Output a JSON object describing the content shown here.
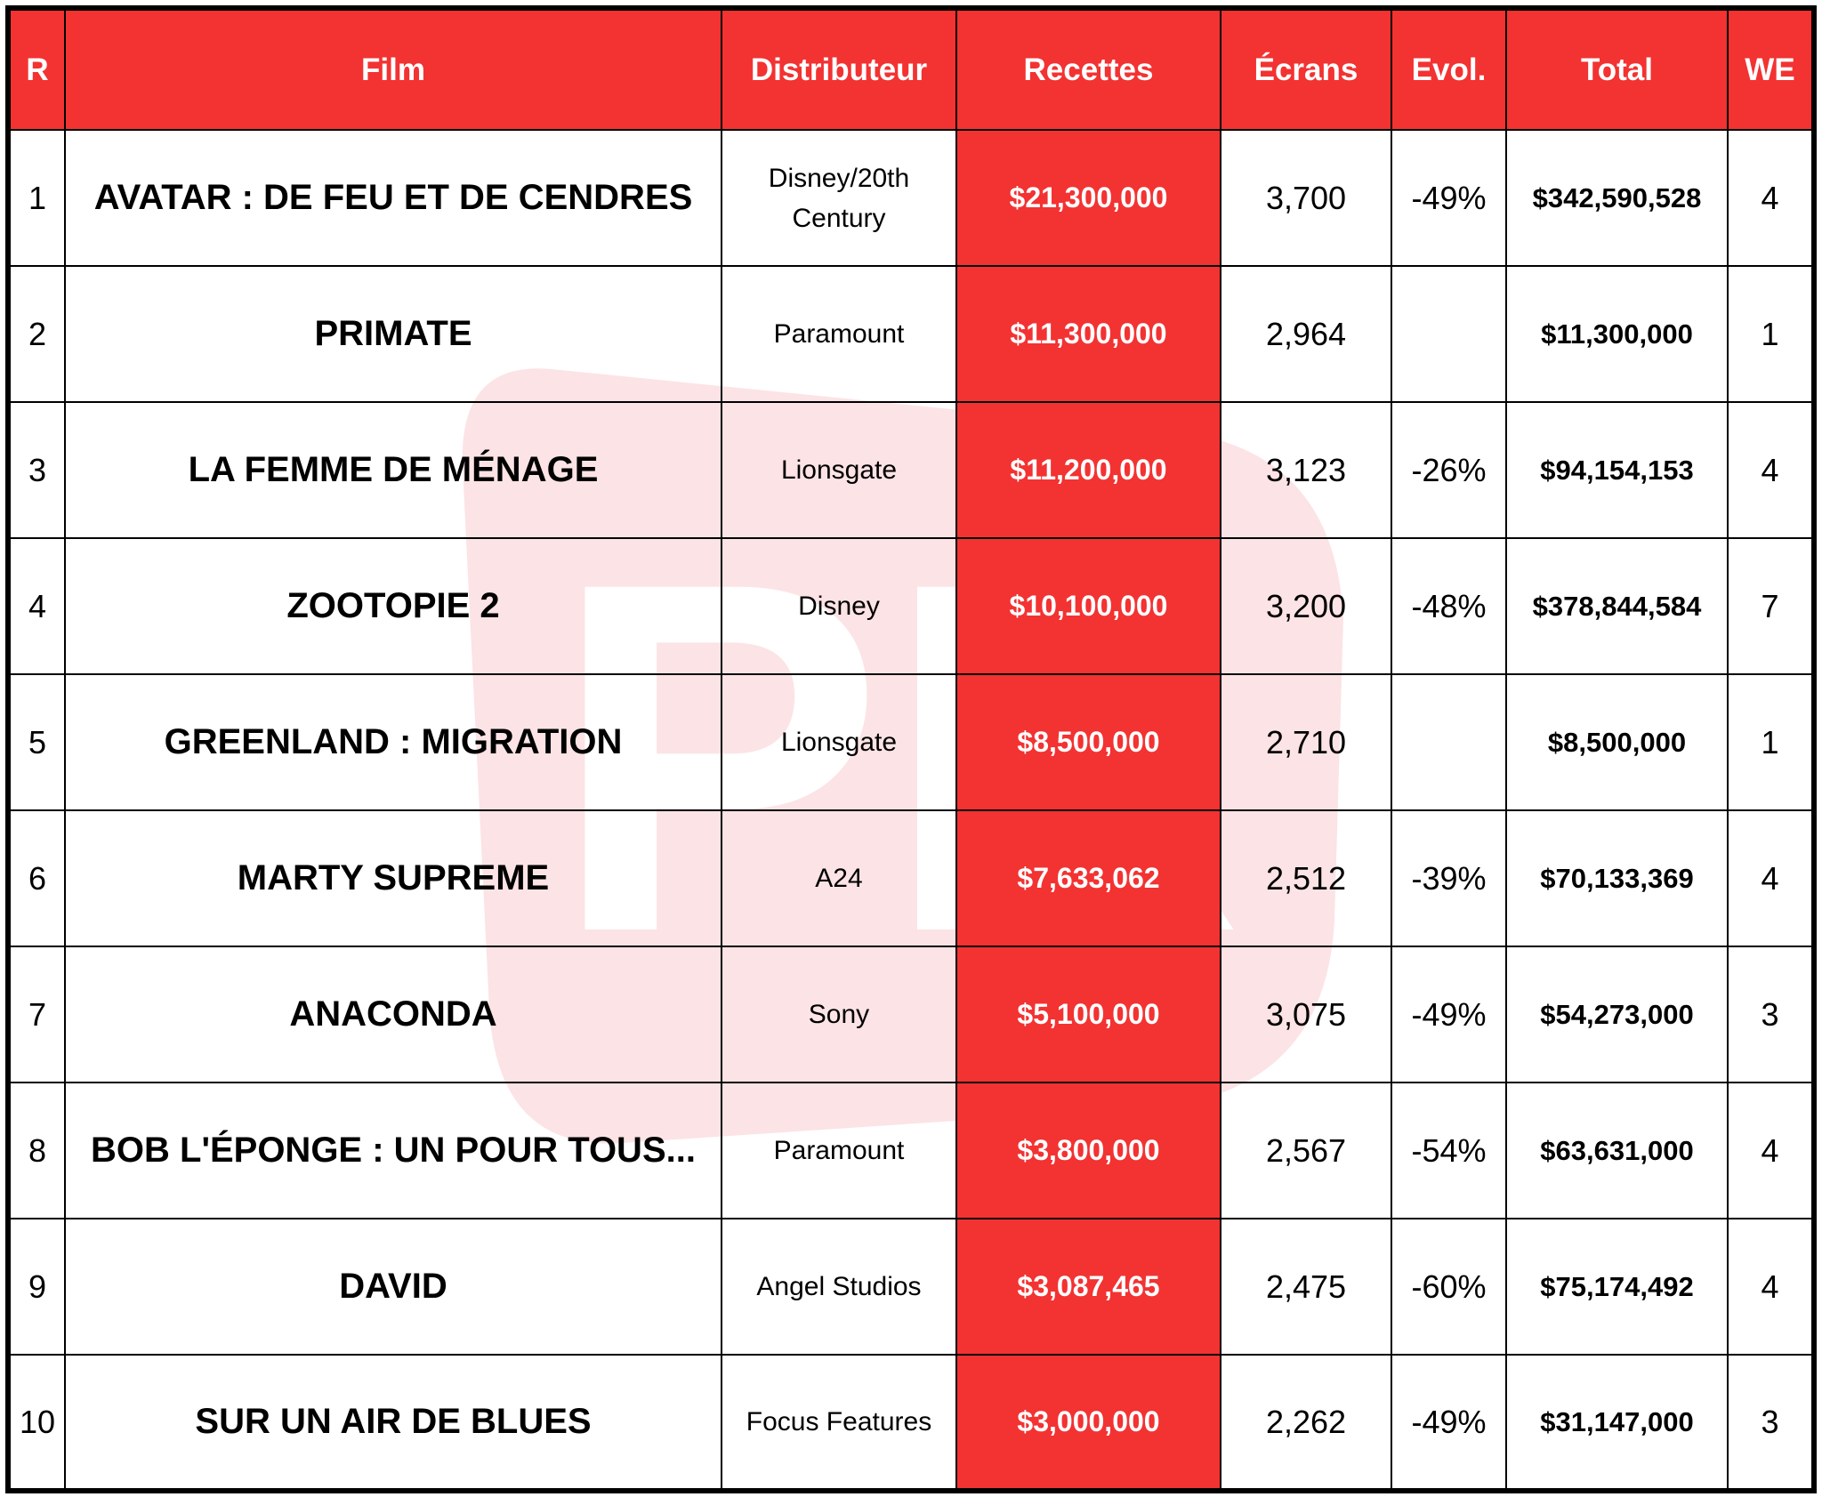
{
  "watermark": "PR",
  "table": {
    "headers": [
      "R",
      "Film",
      "Distributeur",
      "Recettes",
      "Écrans",
      "Evol.",
      "Total",
      "WE"
    ],
    "rows": [
      [
        "1",
        "AVATAR : DE FEU ET DE CENDRES",
        "Disney/20th Century",
        "$21,300,000",
        "3,700",
        "-49%",
        "$342,590,528",
        "4"
      ],
      [
        "2",
        "PRIMATE",
        "Paramount",
        "$11,300,000",
        "2,964",
        null,
        "$11,300,000",
        "1"
      ],
      [
        "3",
        "LA FEMME DE MÉNAGE",
        "Lionsgate",
        "$11,200,000",
        "3,123",
        "-26%",
        "$94,154,153",
        "4"
      ],
      [
        "4",
        "ZOOTOPIE 2",
        "Disney",
        "$10,100,000",
        "3,200",
        "-48%",
        "$378,844,584",
        "7"
      ],
      [
        "5",
        "GREENLAND : MIGRATION",
        "Lionsgate",
        "$8,500,000",
        "2,710",
        null,
        "$8,500,000",
        "1"
      ],
      [
        "6",
        "MARTY SUPREME",
        "A24",
        "$7,633,062",
        "2,512",
        "-39%",
        "$70,133,369",
        "4"
      ],
      [
        "7",
        "ANACONDA",
        "Sony",
        "$5,100,000",
        "3,075",
        "-49%",
        "$54,273,000",
        "3"
      ],
      [
        "8",
        "BOB L'ÉPONGE : UN POUR TOUS...",
        "Paramount",
        "$3,800,000",
        "2,567",
        "-54%",
        "$63,631,000",
        "4"
      ],
      [
        "9",
        "DAVID",
        "Angel Studios",
        "$3,087,465",
        "2,475",
        "-60%",
        "$75,174,492",
        "4"
      ],
      [
        "10",
        "SUR UN AIR DE BLUES",
        "Focus Features",
        "$3,000,000",
        "2,262",
        "-49%",
        "$31,147,000",
        "3"
      ]
    ]
  }
}
